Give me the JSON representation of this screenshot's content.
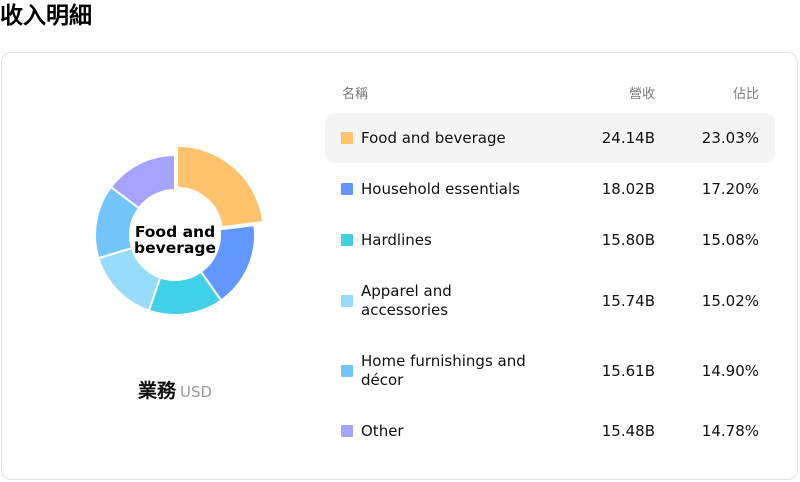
{
  "page_title": "收入明細",
  "donut": {
    "center_label": [
      "Food and",
      "beverage"
    ]
  },
  "subtitle": {
    "segment": "業務",
    "currency": "USD"
  },
  "table": {
    "headers": {
      "name": "名稱",
      "revenue": "營收",
      "share": "佔比"
    },
    "selected_index": 0,
    "rows": [
      {
        "name": [
          "Food and beverage"
        ],
        "revenue": "24.14B",
        "share": "23.03%",
        "share_value": 23.03,
        "color": "#FFC36E"
      },
      {
        "name": [
          "Household essentials"
        ],
        "revenue": "18.02B",
        "share": "17.20%",
        "share_value": 17.2,
        "color": "#6197FF"
      },
      {
        "name": [
          "Hardlines"
        ],
        "revenue": "15.80B",
        "share": "15.08%",
        "share_value": 15.08,
        "color": "#41D1E7"
      },
      {
        "name": [
          "Apparel and",
          "accessories"
        ],
        "revenue": "15.74B",
        "share": "15.02%",
        "share_value": 15.02,
        "color": "#98DCFC"
      },
      {
        "name": [
          "Home furnishings and",
          "décor"
        ],
        "revenue": "15.61B",
        "share": "14.90%",
        "share_value": 14.9,
        "color": "#72C5FB"
      },
      {
        "name": [
          "Other"
        ],
        "revenue": "15.48B",
        "share": "14.78%",
        "share_value": 14.78,
        "color": "#A4A3FE"
      }
    ]
  }
}
